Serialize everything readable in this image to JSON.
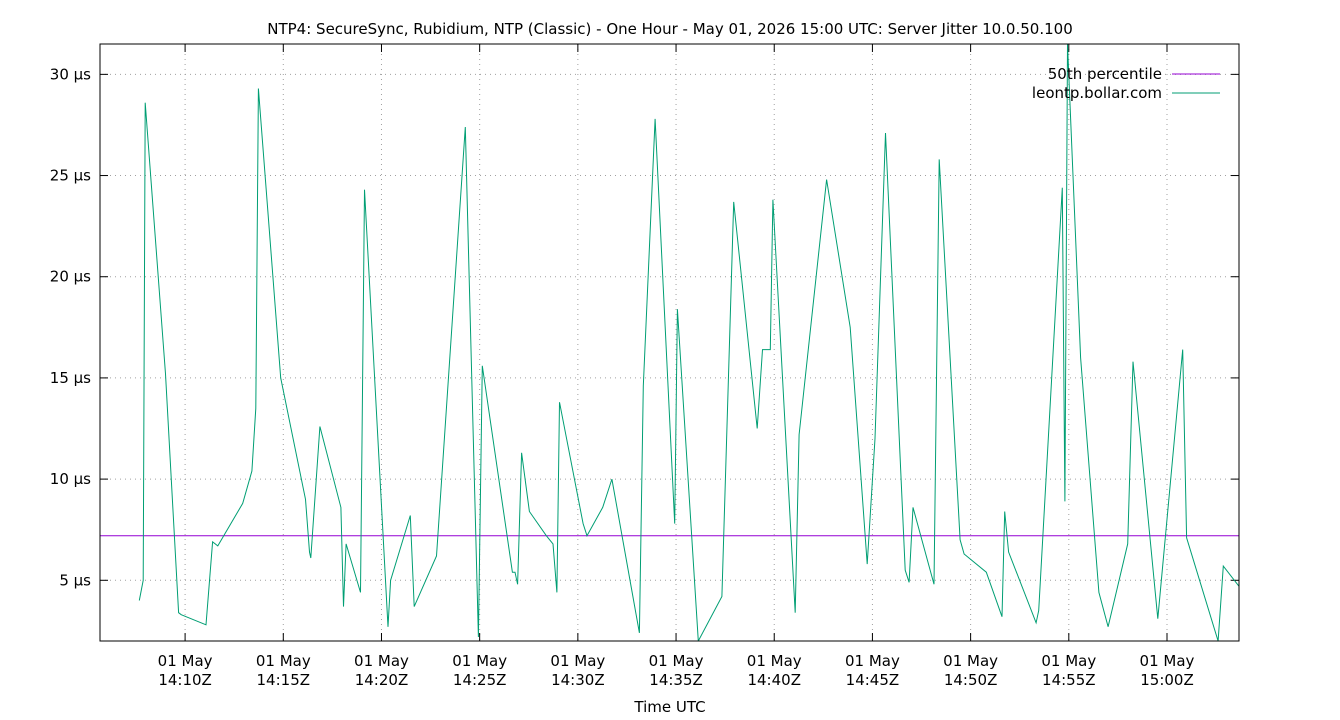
{
  "chart_data": {
    "type": "line",
    "title": "NTP4: SecureSync, Rubidium, NTP (Classic) - One Hour - May 01, 2026 15:00 UTC: Server Jitter 10.0.50.100",
    "xlabel": "Time UTC",
    "ylabel": "",
    "x_unit": "minutes",
    "xlim": [
      "14:05:40",
      "15:03:40"
    ],
    "ylim": [
      2.0,
      31.5
    ],
    "grid": true,
    "legend_position": "top-right",
    "x_ticks": [
      {
        "t": "14:10",
        "line1": "01 May",
        "line2": "14:10Z"
      },
      {
        "t": "14:15",
        "line1": "01 May",
        "line2": "14:15Z"
      },
      {
        "t": "14:20",
        "line1": "01 May",
        "line2": "14:20Z"
      },
      {
        "t": "14:25",
        "line1": "01 May",
        "line2": "14:25Z"
      },
      {
        "t": "14:30",
        "line1": "01 May",
        "line2": "14:30Z"
      },
      {
        "t": "14:35",
        "line1": "01 May",
        "line2": "14:35Z"
      },
      {
        "t": "14:40",
        "line1": "01 May",
        "line2": "14:40Z"
      },
      {
        "t": "14:45",
        "line1": "01 May",
        "line2": "14:45Z"
      },
      {
        "t": "14:50",
        "line1": "01 May",
        "line2": "14:50Z"
      },
      {
        "t": "14:55",
        "line1": "01 May",
        "line2": "14:55Z"
      },
      {
        "t": "15:00",
        "line1": "01 May",
        "line2": "15:00Z"
      }
    ],
    "y_ticks": [
      {
        "v": 5,
        "label": "5 µs"
      },
      {
        "v": 10,
        "label": "10 µs"
      },
      {
        "v": 15,
        "label": "15 µs"
      },
      {
        "v": 20,
        "label": "20 µs"
      },
      {
        "v": 25,
        "label": "25 µs"
      },
      {
        "v": 30,
        "label": "30 µs"
      }
    ],
    "series": [
      {
        "name": "50th percentile",
        "color": "#9400d3",
        "kind": "hline",
        "y": 7.2
      },
      {
        "name": "leontp.bollar.com",
        "color": "#009e73",
        "kind": "line",
        "points": [
          {
            "t": "14:07:40",
            "y": 4.0
          },
          {
            "t": "14:07:52",
            "y": 5.0
          },
          {
            "t": "14:07:58",
            "y": 28.6
          },
          {
            "t": "14:09:00",
            "y": 15.2
          },
          {
            "t": "14:09:40",
            "y": 3.4
          },
          {
            "t": "14:09:48",
            "y": 3.3
          },
          {
            "t": "14:11:04",
            "y": 2.8
          },
          {
            "t": "14:11:24",
            "y": 6.9
          },
          {
            "t": "14:11:40",
            "y": 6.7
          },
          {
            "t": "14:12:56",
            "y": 8.8
          },
          {
            "t": "14:13:24",
            "y": 10.4
          },
          {
            "t": "14:13:36",
            "y": 13.5
          },
          {
            "t": "14:13:44",
            "y": 29.3
          },
          {
            "t": "14:14:52",
            "y": 15.0
          },
          {
            "t": "14:16:08",
            "y": 9.0
          },
          {
            "t": "14:16:20",
            "y": 6.4
          },
          {
            "t": "14:16:24",
            "y": 6.1
          },
          {
            "t": "14:16:52",
            "y": 12.6
          },
          {
            "t": "14:17:56",
            "y": 8.6
          },
          {
            "t": "14:18:04",
            "y": 3.7
          },
          {
            "t": "14:18:12",
            "y": 6.8
          },
          {
            "t": "14:18:56",
            "y": 4.4
          },
          {
            "t": "14:19:08",
            "y": 24.3
          },
          {
            "t": "14:20:20",
            "y": 2.7
          },
          {
            "t": "14:20:28",
            "y": 5.0
          },
          {
            "t": "14:21:28",
            "y": 8.2
          },
          {
            "t": "14:21:40",
            "y": 3.7
          },
          {
            "t": "14:22:48",
            "y": 6.2
          },
          {
            "t": "14:24:16",
            "y": 27.4
          },
          {
            "t": "14:24:56",
            "y": 2.2
          },
          {
            "t": "14:25:08",
            "y": 15.6
          },
          {
            "t": "14:26:40",
            "y": 5.4
          },
          {
            "t": "14:26:48",
            "y": 5.4
          },
          {
            "t": "14:26:56",
            "y": 4.8
          },
          {
            "t": "14:27:08",
            "y": 11.3
          },
          {
            "t": "14:27:32",
            "y": 8.4
          },
          {
            "t": "14:28:24",
            "y": 7.2
          },
          {
            "t": "14:28:44",
            "y": 6.8
          },
          {
            "t": "14:28:56",
            "y": 4.4
          },
          {
            "t": "14:29:04",
            "y": 13.8
          },
          {
            "t": "14:30:16",
            "y": 7.8
          },
          {
            "t": "14:30:28",
            "y": 7.2
          },
          {
            "t": "14:31:16",
            "y": 8.6
          },
          {
            "t": "14:31:44",
            "y": 10.0
          },
          {
            "t": "14:33:08",
            "y": 2.4
          },
          {
            "t": "14:33:20",
            "y": 14.6
          },
          {
            "t": "14:33:56",
            "y": 27.8
          },
          {
            "t": "14:34:56",
            "y": 7.8
          },
          {
            "t": "14:35:04",
            "y": 18.4
          },
          {
            "t": "14:36:08",
            "y": 2.0
          },
          {
            "t": "14:37:20",
            "y": 4.2
          },
          {
            "t": "14:37:56",
            "y": 23.7
          },
          {
            "t": "14:39:08",
            "y": 12.5
          },
          {
            "t": "14:39:24",
            "y": 16.4
          },
          {
            "t": "14:39:48",
            "y": 16.4
          },
          {
            "t": "14:39:56",
            "y": 23.8
          },
          {
            "t": "14:41:04",
            "y": 3.4
          },
          {
            "t": "14:41:16",
            "y": 12.2
          },
          {
            "t": "14:42:40",
            "y": 24.8
          },
          {
            "t": "14:43:52",
            "y": 17.5
          },
          {
            "t": "14:44:44",
            "y": 5.8
          },
          {
            "t": "14:45:08",
            "y": 12.0
          },
          {
            "t": "14:45:40",
            "y": 27.1
          },
          {
            "t": "14:46:40",
            "y": 5.5
          },
          {
            "t": "14:46:52",
            "y": 4.9
          },
          {
            "t": "14:47:04",
            "y": 8.6
          },
          {
            "t": "14:48:08",
            "y": 4.8
          },
          {
            "t": "14:48:24",
            "y": 25.8
          },
          {
            "t": "14:49:28",
            "y": 7.0
          },
          {
            "t": "14:49:40",
            "y": 6.3
          },
          {
            "t": "14:50:48",
            "y": 5.4
          },
          {
            "t": "14:51:36",
            "y": 3.2
          },
          {
            "t": "14:51:44",
            "y": 8.4
          },
          {
            "t": "14:51:56",
            "y": 6.4
          },
          {
            "t": "14:53:20",
            "y": 2.9
          },
          {
            "t": "14:53:28",
            "y": 3.5
          },
          {
            "t": "14:54:40",
            "y": 24.4
          },
          {
            "t": "14:54:48",
            "y": 8.9
          },
          {
            "t": "14:54:56",
            "y": 31.5
          },
          {
            "t": "14:55:36",
            "y": 16.0
          },
          {
            "t": "14:56:32",
            "y": 4.4
          },
          {
            "t": "14:57:00",
            "y": 2.7
          },
          {
            "t": "14:58:00",
            "y": 6.8
          },
          {
            "t": "14:58:16",
            "y": 15.8
          },
          {
            "t": "14:59:32",
            "y": 3.1
          },
          {
            "t": "15:00:48",
            "y": 16.4
          },
          {
            "t": "15:01:00",
            "y": 7.1
          },
          {
            "t": "15:02:36",
            "y": 2.0
          },
          {
            "t": "15:02:52",
            "y": 5.7
          },
          {
            "t": "15:04:04",
            "y": 4.2
          }
        ]
      }
    ]
  }
}
